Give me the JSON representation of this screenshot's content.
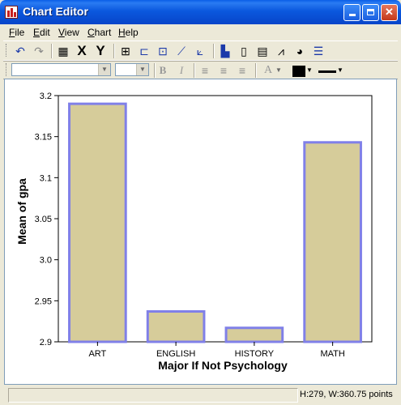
{
  "window": {
    "title": "Chart Editor"
  },
  "menu": [
    {
      "label": "File",
      "key": "F"
    },
    {
      "label": "Edit",
      "key": "E"
    },
    {
      "label": "View",
      "key": "V"
    },
    {
      "label": "Chart",
      "key": "C"
    },
    {
      "label": "Help",
      "key": "H"
    }
  ],
  "toolbar": {
    "x_label": "X",
    "y_label": "Y",
    "bold_label": "B",
    "italic_label": "I",
    "font_color_label": "A"
  },
  "status": {
    "dimensions": "H:279, W:360.75 points"
  },
  "colors": {
    "bar_fill": "#d6cc9a",
    "bar_stroke": "#8080e8",
    "title_bar": "#0b58de"
  },
  "chart_data": {
    "type": "bar",
    "categories": [
      "ART",
      "ENGLISH",
      "HISTORY",
      "MATH"
    ],
    "values": [
      3.19,
      2.937,
      2.917,
      3.143
    ],
    "xlabel": "Major If Not Psychology",
    "ylabel": "Mean of gpa",
    "ylim": [
      2.9,
      3.2
    ],
    "yticks": [
      "3.2",
      "3.15",
      "3.1",
      "3.05",
      "3.0",
      "2.95",
      "2.9"
    ],
    "ytick_values": [
      3.2,
      3.15,
      3.1,
      3.05,
      3.0,
      2.95,
      2.9
    ]
  }
}
